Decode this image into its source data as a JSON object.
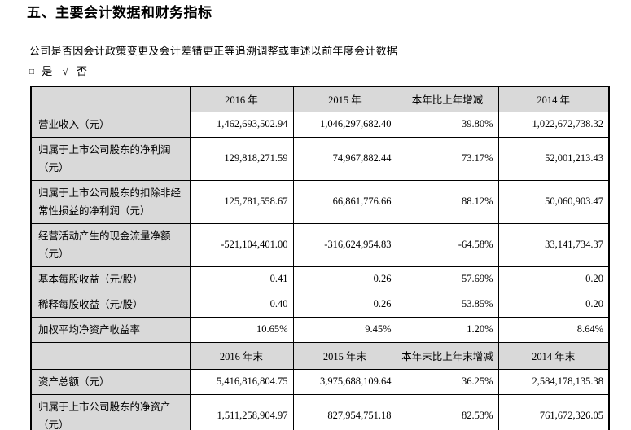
{
  "doc": {
    "title": "五、主要会计数据和财务指标",
    "question": "公司是否因会计政策变更及会计差错更正等追溯调整或重述以前年度会计数据",
    "choice": {
      "box_symbol": "□",
      "yes_label": "是",
      "check_symbol": "√",
      "no_label": "否"
    }
  },
  "table": {
    "sections": [
      {
        "header": [
          "",
          "2016 年",
          "2015 年",
          "本年比上年增减",
          "2014 年"
        ],
        "rows": [
          [
            "营业收入（元）",
            "1,462,693,502.94",
            "1,046,297,682.40",
            "39.80%",
            "1,022,672,738.32"
          ],
          [
            "归属于上市公司股东的净利润（元）",
            "129,818,271.59",
            "74,967,882.44",
            "73.17%",
            "52,001,213.43"
          ],
          [
            "归属于上市公司股东的扣除非经常性损益的净利润（元）",
            "125,781,558.67",
            "66,861,776.66",
            "88.12%",
            "50,060,903.47"
          ],
          [
            "经营活动产生的现金流量净额（元）",
            "-521,104,401.00",
            "-316,624,954.83",
            "-64.58%",
            "33,141,734.37"
          ],
          [
            "基本每股收益（元/股）",
            "0.41",
            "0.26",
            "57.69%",
            "0.20"
          ],
          [
            "稀释每股收益（元/股）",
            "0.40",
            "0.26",
            "53.85%",
            "0.20"
          ],
          [
            "加权平均净资产收益率",
            "10.65%",
            "9.45%",
            "1.20%",
            "8.64%"
          ]
        ]
      },
      {
        "header": [
          "",
          "2016 年末",
          "2015 年末",
          "本年末比上年末增减",
          "2014 年末"
        ],
        "rows": [
          [
            "资产总额（元）",
            "5,416,816,804.75",
            "3,975,688,109.64",
            "36.25%",
            "2,584,178,135.38"
          ],
          [
            "归属于上市公司股东的净资产（元）",
            "1,511,258,904.97",
            "827,954,751.18",
            "82.53%",
            "761,672,326.05"
          ]
        ]
      }
    ],
    "colors": {
      "header_bg": "#d9d9d9",
      "label_bg": "#d9d9d9",
      "border": "#000000"
    }
  }
}
